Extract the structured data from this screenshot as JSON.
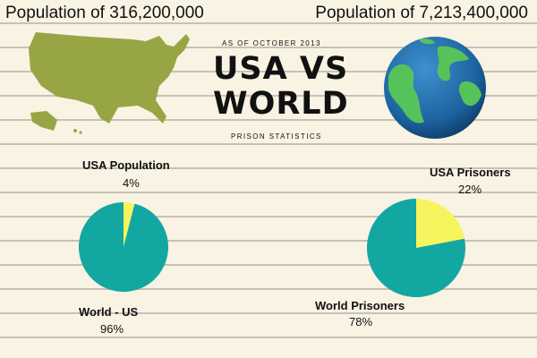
{
  "header": {
    "usa_population": "Population of 316,200,000",
    "world_population": "Population of 7,213,400,000"
  },
  "title": {
    "subtitle": "AS OF OCTOBER 2013",
    "line1": "USA VS",
    "line2": "WORLD",
    "section": "PRISON STATISTICS"
  },
  "colors": {
    "teal": "#13a7a2",
    "yellow": "#f7f55e",
    "map": "#98a545",
    "ocean": "#1f6ea8",
    "land": "#56c35a"
  },
  "icons": {
    "map": "usa-map-icon",
    "globe": "globe-icon"
  },
  "chart_data": [
    {
      "type": "pie",
      "title": "",
      "slices": [
        {
          "label": "USA Population",
          "value": 4,
          "display": "4%",
          "color": "#f7f55e"
        },
        {
          "label": "World - US",
          "value": 96,
          "display": "96%",
          "color": "#13a7a2"
        }
      ]
    },
    {
      "type": "pie",
      "title": "",
      "slices": [
        {
          "label": "USA Prisoners",
          "value": 22,
          "display": "22%",
          "color": "#f7f55e"
        },
        {
          "label": "World Prisoners",
          "value": 78,
          "display": "78%",
          "color": "#13a7a2"
        }
      ]
    }
  ]
}
